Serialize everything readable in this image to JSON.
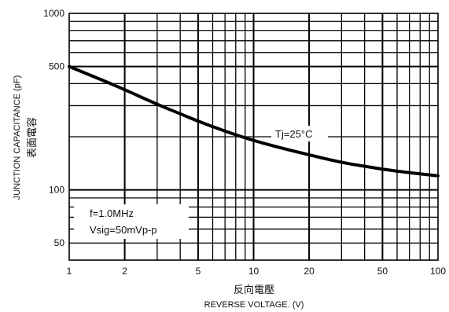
{
  "chart_data": {
    "type": "line",
    "x_scale": "log",
    "y_scale": "log",
    "xlim": [
      1,
      100
    ],
    "ylim": [
      40,
      1000
    ],
    "x_ticks": [
      {
        "value": 1,
        "label": "1"
      },
      {
        "value": 2,
        "label": "2"
      },
      {
        "value": 5,
        "label": "5"
      },
      {
        "value": 10,
        "label": "10"
      },
      {
        "value": 20,
        "label": "20"
      },
      {
        "value": 50,
        "label": "50"
      },
      {
        "value": 100,
        "label": "100"
      }
    ],
    "y_ticks": [
      {
        "value": 50,
        "label": "50"
      },
      {
        "value": 100,
        "label": "100"
      },
      {
        "value": 500,
        "label": "500"
      },
      {
        "value": 1000,
        "label": "1000"
      }
    ],
    "xlabel_cn": "反向電壓",
    "xlabel": "REVERSE VOLTAGE. (V)",
    "ylabel": "JUNCTION CAPACITANCE (pF)",
    "ylabel_cn": "表面電容",
    "grid": true,
    "series": [
      {
        "x": [
          1,
          1.5,
          2,
          3,
          4,
          5,
          7,
          10,
          15,
          20,
          30,
          40,
          50,
          70,
          100
        ],
        "y": [
          500,
          420,
          370,
          305,
          270,
          245,
          215,
          190,
          170,
          158,
          143,
          136,
          131,
          125,
          120
        ]
      }
    ],
    "annotations": {
      "temperature": "Tj=25°C",
      "frequency": "f=1.0MHz",
      "signal": "Vsig=50mVp-p"
    }
  }
}
